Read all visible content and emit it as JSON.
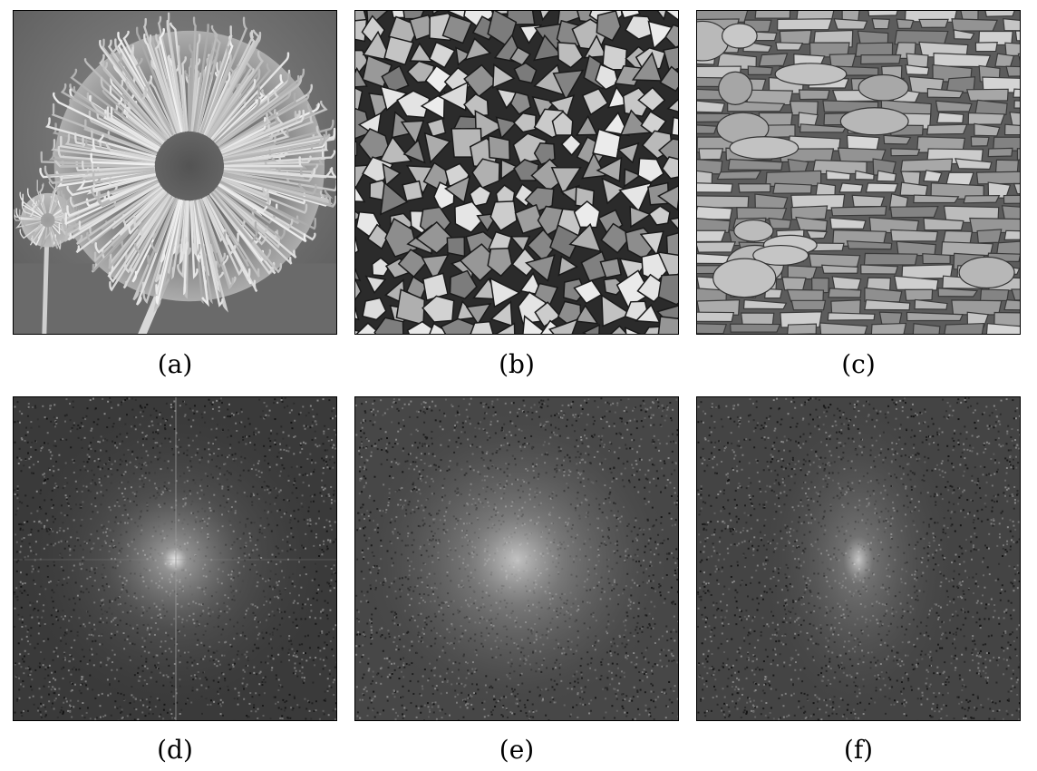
{
  "figure": {
    "panels": [
      {
        "id": "a",
        "caption": "(a)",
        "content": "flower-photo"
      },
      {
        "id": "b",
        "caption": "(b)",
        "content": "woodpile-photo"
      },
      {
        "id": "c",
        "caption": "(c)",
        "content": "stone-wall-photo"
      },
      {
        "id": "d",
        "caption": "(d)",
        "content": "fourier-spectrum"
      },
      {
        "id": "e",
        "caption": "(e)",
        "content": "fourier-spectrum"
      },
      {
        "id": "f",
        "caption": "(f)",
        "content": "fourier-spectrum"
      }
    ]
  }
}
